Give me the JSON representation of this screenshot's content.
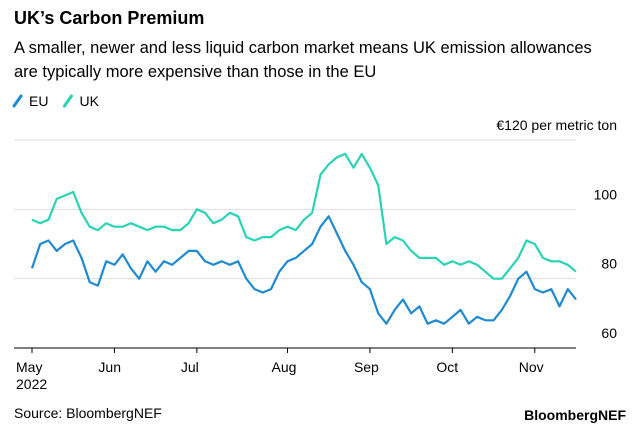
{
  "chart_data": {
    "type": "line",
    "title": "UK’s Carbon Premium",
    "subtitle": "A smaller, newer and less liquid carbon market means UK emission allowances are typically more expensive than those in the EU",
    "categories": [
      "May",
      null,
      null,
      null,
      null,
      null,
      null,
      null,
      null,
      null,
      "Jun",
      null,
      null,
      null,
      null,
      null,
      null,
      null,
      null,
      null,
      "Jul",
      null,
      null,
      null,
      null,
      null,
      null,
      null,
      null,
      null,
      null,
      "Aug",
      null,
      null,
      null,
      null,
      null,
      null,
      null,
      null,
      null,
      "Sep",
      null,
      null,
      null,
      null,
      null,
      null,
      null,
      null,
      null,
      "Oct",
      null,
      null,
      null,
      null,
      null,
      null,
      null,
      null,
      null,
      "Nov",
      null,
      null,
      null,
      null,
      null
    ],
    "year_label": "2022",
    "series": [
      {
        "name": "EU",
        "color": "#1f8ad1",
        "values": [
          83,
          90,
          91,
          88,
          90,
          91,
          86,
          79,
          78,
          85,
          84,
          87,
          83,
          80,
          85,
          82,
          85,
          84,
          86,
          88,
          88,
          85,
          84,
          85,
          84,
          85,
          80,
          77,
          76,
          77,
          82,
          85,
          86,
          88,
          90,
          95,
          98,
          93,
          88,
          84,
          79,
          77,
          70,
          67,
          71,
          74,
          70,
          72,
          67,
          68,
          67,
          69,
          71,
          67,
          69,
          68,
          68,
          71,
          75,
          80,
          82,
          77,
          76,
          77,
          72,
          77,
          74
        ]
      },
      {
        "name": "UK",
        "color": "#2ad3b4",
        "values": [
          97,
          96,
          97,
          103,
          104,
          105,
          99,
          95,
          94,
          96,
          95,
          95,
          96,
          95,
          94,
          95,
          95,
          94,
          94,
          96,
          100,
          99,
          96,
          97,
          99,
          98,
          92,
          91,
          92,
          92,
          94,
          95,
          94,
          97,
          99,
          110,
          113,
          115,
          116,
          112,
          116,
          112,
          107,
          90,
          92,
          91,
          88,
          86,
          86,
          86,
          84,
          85,
          84,
          85,
          84,
          82,
          80,
          80,
          83,
          86,
          91,
          90,
          86,
          85,
          85,
          84,
          82
        ]
      }
    ],
    "ylim": [
      60,
      120
    ],
    "yticks": [
      60,
      80,
      100,
      {
        "value": 120,
        "label": "€120 per metric ton"
      }
    ],
    "grid": true,
    "source": "Source: BloombergNEF",
    "brand": "BloombergNEF"
  }
}
